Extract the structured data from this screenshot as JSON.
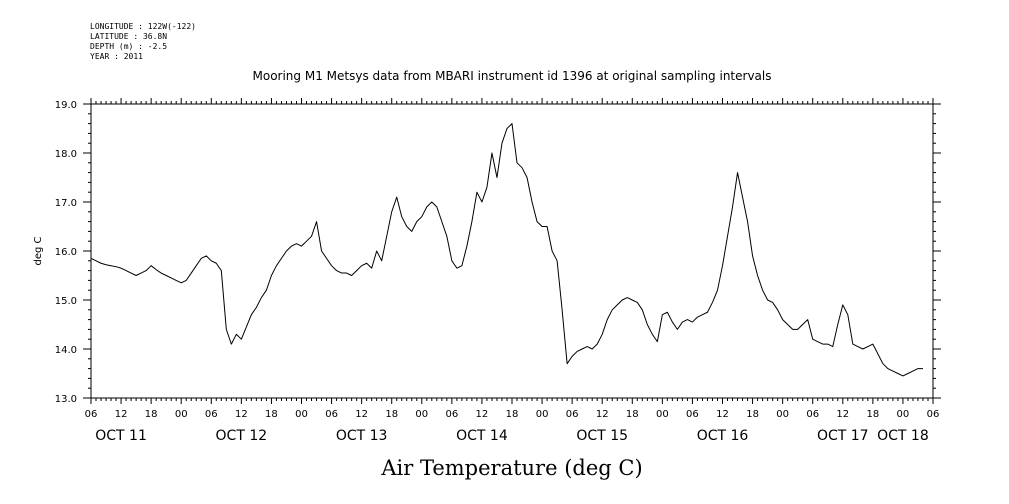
{
  "header": {
    "longitude": "LONGITUDE : 122W(-122)",
    "latitude": "LATITUDE : 36.8N",
    "depth": "DEPTH (m) : -2.5",
    "year": "YEAR : 2011"
  },
  "chart_data": {
    "type": "line",
    "title": "Mooring M1 Metsys data from MBARI instrument id 1396 at original sampling intervals",
    "xlabel": "Air Temperature (deg C)",
    "ylabel": "deg C",
    "ylim": [
      13.0,
      19.0
    ],
    "yticks": [
      "13.0",
      "14.0",
      "15.0",
      "16.0",
      "17.0",
      "18.0",
      "19.0"
    ],
    "xlim_hours": [
      0,
      168
    ],
    "x_tick_labels": [
      "06",
      "12",
      "18",
      "00",
      "06",
      "12",
      "18",
      "00",
      "06",
      "12",
      "18",
      "00",
      "06",
      "12",
      "18",
      "00",
      "06",
      "12",
      "18",
      "00",
      "06",
      "12",
      "18",
      "00",
      "06",
      "12",
      "18",
      "00",
      "06"
    ],
    "day_labels": [
      "OCT 11",
      "OCT 12",
      "OCT 13",
      "OCT 14",
      "OCT 15",
      "OCT 16",
      "OCT 17",
      "OCT 18"
    ],
    "series": [
      {
        "x_hours_from_oct11_06": [
          0,
          1,
          2,
          3,
          4,
          5,
          6,
          7,
          8,
          9,
          10,
          11,
          12,
          13,
          14,
          15,
          16,
          17,
          18,
          19,
          20,
          21,
          22,
          23,
          24,
          25,
          26,
          27,
          28,
          29,
          30,
          31,
          32,
          33,
          34,
          35,
          36,
          37,
          38,
          39,
          40,
          41,
          42,
          43,
          44,
          45,
          46,
          47,
          48,
          49,
          50,
          51,
          52,
          53,
          54,
          55,
          56,
          57,
          58,
          59,
          60,
          61,
          62,
          63,
          64,
          65,
          66,
          67,
          68,
          69,
          70,
          71,
          72,
          73,
          74,
          75,
          76,
          77,
          78,
          79,
          80,
          81,
          82,
          83,
          84,
          85,
          86,
          87,
          88,
          89,
          90,
          91,
          92,
          93,
          94,
          95,
          96,
          97,
          98,
          99,
          100,
          101,
          102,
          103,
          104,
          105,
          106,
          107,
          108,
          109,
          110,
          111,
          112,
          113,
          114,
          115,
          116,
          117,
          118,
          119,
          120,
          121,
          122,
          123,
          124,
          125,
          126,
          127,
          128,
          129,
          130,
          131,
          132,
          133,
          134,
          135,
          136,
          137,
          138,
          139,
          140,
          141,
          142,
          143,
          144,
          145,
          146,
          147,
          148,
          149,
          150,
          151,
          152,
          153,
          154,
          155,
          156,
          157,
          158,
          159,
          160,
          161,
          162,
          163,
          164,
          165,
          166,
          167,
          168
        ],
        "values": [
          15.85,
          15.8,
          15.75,
          15.72,
          15.7,
          15.68,
          15.65,
          15.6,
          15.55,
          15.5,
          15.55,
          15.6,
          15.7,
          15.62,
          15.55,
          15.5,
          15.45,
          15.4,
          15.35,
          15.4,
          15.55,
          15.7,
          15.85,
          15.9,
          15.8,
          15.75,
          15.6,
          14.4,
          14.1,
          14.3,
          14.2,
          14.45,
          14.7,
          14.85,
          15.05,
          15.2,
          15.5,
          15.7,
          15.85,
          16.0,
          16.1,
          16.15,
          16.1,
          16.2,
          16.3,
          16.6,
          16.0,
          15.85,
          15.7,
          15.6,
          15.55,
          15.55,
          15.5,
          15.6,
          15.7,
          15.75,
          15.65,
          16.0,
          15.8,
          16.3,
          16.8,
          17.1,
          16.7,
          16.5,
          16.4,
          16.6,
          16.7,
          16.9,
          17.0,
          16.9,
          16.6,
          16.3,
          15.8,
          15.65,
          15.7,
          16.1,
          16.6,
          17.2,
          17.0,
          17.3,
          18.0,
          17.5,
          18.2,
          18.5,
          18.6,
          17.8,
          17.7,
          17.5,
          17.0,
          16.6,
          16.5,
          16.5,
          16.0,
          15.8,
          14.8,
          13.7,
          13.85,
          13.95,
          14.0,
          14.05,
          14.0,
          14.1,
          14.3,
          14.6,
          14.8,
          14.9,
          15.0,
          15.05,
          15.0,
          14.95,
          14.8,
          14.5,
          14.3,
          14.15,
          14.7,
          14.75,
          14.55,
          14.4,
          14.55,
          14.6,
          14.55,
          14.65,
          14.7,
          14.75,
          14.95,
          15.2,
          15.7,
          16.3,
          16.9,
          17.6,
          17.1,
          16.6,
          15.9,
          15.5,
          15.2,
          15.0,
          14.95,
          14.8,
          14.6,
          14.5,
          14.4,
          14.4,
          14.5,
          14.6,
          14.2,
          14.15,
          14.1,
          14.1,
          14.05,
          14.5,
          14.9,
          14.7,
          14.1,
          14.05,
          14.0,
          14.05,
          14.1,
          13.9,
          13.7,
          13.6,
          13.55,
          13.5,
          13.45,
          13.5,
          13.55,
          13.6,
          13.6
        ]
      }
    ],
    "grid": false,
    "legend": "none"
  }
}
